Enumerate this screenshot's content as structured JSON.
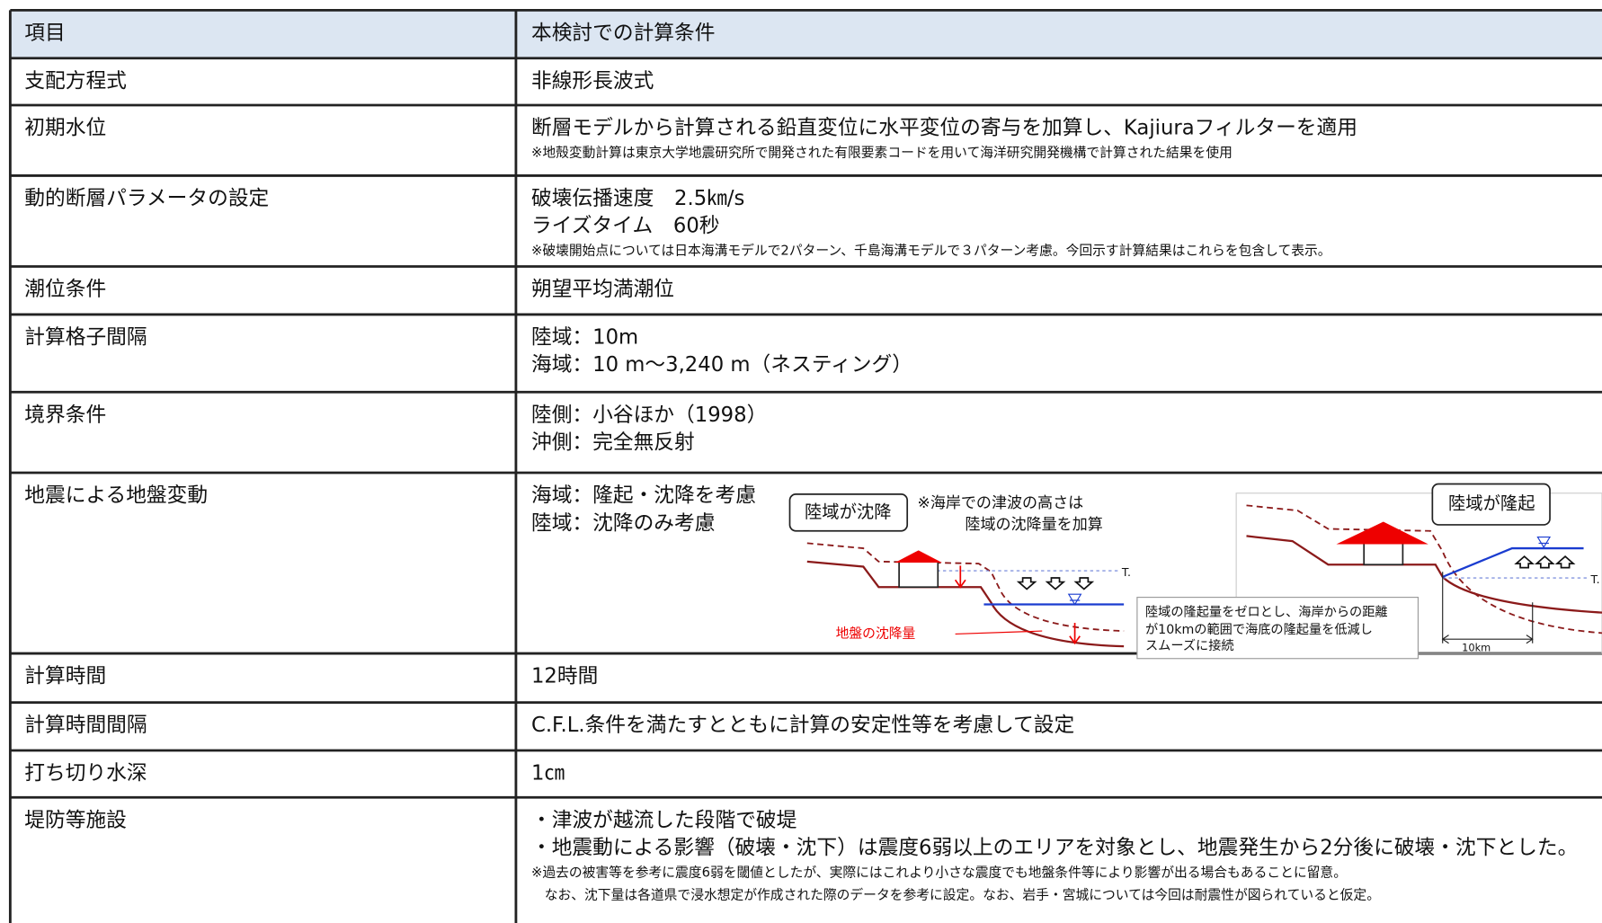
{
  "table": {
    "header": [
      "項目",
      "本検討での計算条件"
    ],
    "rows": [
      {
        "item": "支配方程式",
        "lines": [
          "非線形長波式"
        ],
        "notes": []
      },
      {
        "item": "初期水位",
        "lines": [
          "断層モデルから計算される鉛直変位に水平変位の寄与を加算し、Kajiuraフィルターを適用"
        ],
        "notes": [
          "※地殻変動計算は東京大学地震研究所で開発された有限要素コードを用いて海洋研究開発機構で計算された結果を使用"
        ]
      },
      {
        "item": "動的断層パラメータの設定",
        "lines": [
          "破壊伝播速度　2.5㎞/s",
          "ライズタイム　60秒"
        ],
        "notes": [
          "※破壊開始点については日本海溝モデルで2パターン、千島海溝モデルで３パターン考慮。今回示す計算結果はこれらを包含して表示。"
        ]
      },
      {
        "item": "潮位条件",
        "lines": [
          "朔望平均満潮位"
        ],
        "notes": []
      },
      {
        "item": "計算格子間隔",
        "lines": [
          "陸域：10m",
          "海域：10 m～3,240 m（ネスティング）"
        ],
        "notes": []
      },
      {
        "item": "境界条件",
        "lines": [
          "陸側：小谷ほか（1998）",
          "沖側：完全無反射"
        ],
        "notes": []
      },
      {
        "item": "地震による地盤変動",
        "lines": [
          "海域：隆起・沈降を考慮",
          "陸域：沈降のみ考慮"
        ],
        "notes": []
      },
      {
        "item": "計算時間",
        "lines": [
          "12時間"
        ],
        "notes": []
      },
      {
        "item": "計算時間間隔",
        "lines": [
          "C.F.L.条件を満たすとともに計算の安定性等を考慮して設定"
        ],
        "notes": []
      },
      {
        "item": "打ち切り水深",
        "lines": [
          "1㎝"
        ],
        "notes": []
      },
      {
        "item": "堤防等施設",
        "lines": [
          "・津波が越流した段階で破堤",
          "・地震動による影響（破壊・沈下）は震度6弱以上のエリアを対象とし、地震発生から2分後に破壊・沈下とした。"
        ],
        "notes": [
          "※過去の被害等を参考に震度6弱を閾値としたが、実際にはこれより小さな震度でも地盤条件等により影響が出る場合もあることに留意。",
          "　なお、沈下量は各道県で浸水想定が作成された際のデータを参考に設定。なお、岩手・宮城については今回は耐震性が図られていると仮定。"
        ]
      }
    ]
  },
  "diagram": {
    "subsidence_title": "陸域が沈降",
    "subsidence_note": [
      "※海岸での津波の高さは",
      "陸域の沈降量を加算"
    ],
    "subsidence_label": "地盤の沈降量",
    "tide_label": "T.",
    "uplift_title": "陸域が隆起",
    "uplift_note": [
      "陸域の隆起量をゼロとし、海岸からの距離",
      "が10kmの範囲で海底の隆起量を低減し",
      "スムーズに接続"
    ],
    "distance_label": "10km"
  }
}
